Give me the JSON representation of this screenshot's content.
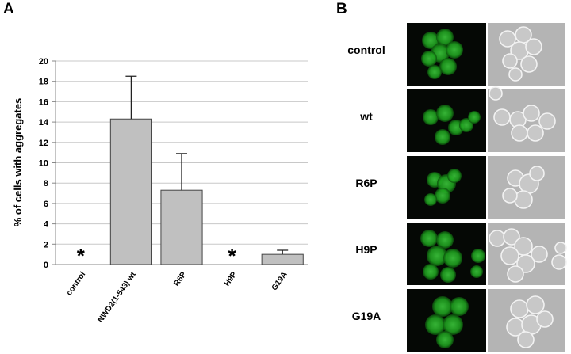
{
  "chart_data": {
    "type": "bar",
    "y_label": "% of cells with aggregates",
    "categories": [
      "control",
      "NWD2(1-543) wt",
      "R6P",
      "H9P",
      "G19A"
    ],
    "values": [
      null,
      14.3,
      7.3,
      null,
      1.0
    ],
    "errors": [
      null,
      4.2,
      3.6,
      null,
      0.4
    ],
    "annotations": [
      {
        "category": "control",
        "text": "*"
      },
      {
        "category": "H9P",
        "text": "*"
      }
    ],
    "color": "#c0c0c0",
    "ylim": [
      0,
      20
    ],
    "yticks": [
      0,
      2,
      4,
      6,
      8,
      10,
      12,
      14,
      16,
      18,
      20
    ],
    "grid": true
  },
  "panel_labels": [
    "A",
    "B"
  ],
  "micrograph_rows": [
    "control",
    "wt",
    "R6P",
    "H9P",
    "G19A"
  ]
}
